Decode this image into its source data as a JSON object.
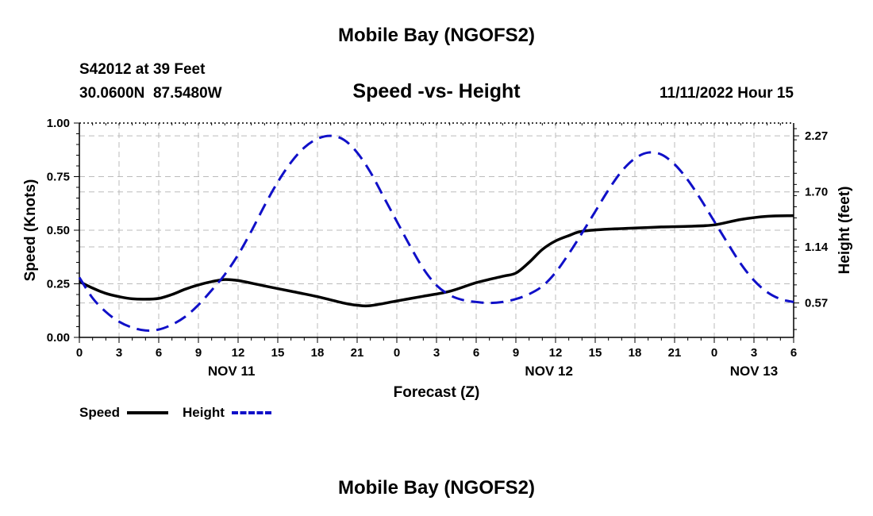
{
  "header": {
    "title_top": "Mobile Bay (NGOFS2)",
    "station": "S42012 at 39 Feet",
    "coords": "30.0600N  87.5480W",
    "subtitle": "Speed -vs- Height",
    "datetime": "11/11/2022 Hour 15",
    "title_bottom": "Mobile Bay (NGOFS2)"
  },
  "legend": {
    "speed_label": "Speed",
    "height_label": "Height"
  },
  "colors": {
    "speed": "#000000",
    "height": "#1010c8",
    "grid": "#bbbbbb"
  },
  "chart_data": {
    "type": "line",
    "title": "Speed -vs- Height",
    "xlabel": "Forecast (Z)",
    "ylabel": "Speed (Knots)",
    "y2label": "Height (feet)",
    "xlim": [
      0,
      54
    ],
    "ylim": [
      0,
      1.0
    ],
    "y2lim": [
      0.22,
      2.4
    ],
    "x_ticks": [
      0,
      3,
      6,
      9,
      12,
      15,
      18,
      21,
      24,
      27,
      30,
      33,
      36,
      39,
      42,
      45,
      48,
      51,
      54
    ],
    "x_tick_labels": [
      "0",
      "3",
      "6",
      "9",
      "12",
      "15",
      "18",
      "21",
      "0",
      "3",
      "6",
      "9",
      "12",
      "15",
      "18",
      "21",
      "0",
      "3",
      "6"
    ],
    "y_ticks": [
      0,
      0.25,
      0.5,
      0.75,
      1.0
    ],
    "y_tick_labels": [
      "0.00",
      "0.25",
      "0.50",
      "0.75",
      "1.00"
    ],
    "y2_ticks": [
      0.57,
      1.14,
      1.7,
      2.27
    ],
    "y2_tick_labels": [
      "0.57",
      "1.14",
      "1.70",
      "2.27"
    ],
    "date_labels": [
      {
        "x": 11.5,
        "label": "NOV 11"
      },
      {
        "x": 35.5,
        "label": "NOV 12"
      },
      {
        "x": 51,
        "label": "NOV 13"
      }
    ],
    "series": [
      {
        "name": "Speed",
        "axis": "left",
        "x": [
          0,
          1,
          2,
          3,
          4,
          5,
          6,
          7,
          8,
          9,
          10,
          11,
          12,
          14,
          16,
          18,
          20,
          21,
          22,
          24,
          26,
          28,
          30,
          32,
          33,
          34,
          35,
          36,
          37,
          38,
          40,
          42,
          44,
          46,
          48,
          50,
          52,
          54
        ],
        "values": [
          0.26,
          0.23,
          0.205,
          0.19,
          0.18,
          0.178,
          0.182,
          0.2,
          0.225,
          0.245,
          0.26,
          0.27,
          0.265,
          0.24,
          0.215,
          0.19,
          0.16,
          0.15,
          0.148,
          0.17,
          0.192,
          0.215,
          0.255,
          0.285,
          0.3,
          0.35,
          0.41,
          0.45,
          0.475,
          0.495,
          0.505,
          0.51,
          0.515,
          0.518,
          0.525,
          0.55,
          0.565,
          0.568
        ]
      },
      {
        "name": "Height",
        "axis": "right",
        "x": [
          0,
          1,
          2,
          3,
          4,
          5,
          6,
          7,
          8,
          9,
          10,
          11,
          12,
          13,
          14,
          15,
          16,
          17,
          18,
          19,
          20,
          21,
          22,
          23,
          24,
          25,
          26,
          27,
          28,
          29,
          30,
          31,
          32,
          33,
          34,
          35,
          36,
          37,
          38,
          39,
          40,
          41,
          42,
          43,
          44,
          45,
          46,
          47,
          48,
          49,
          50,
          51,
          52,
          53,
          54
        ],
        "values": [
          0.83,
          0.62,
          0.48,
          0.38,
          0.32,
          0.29,
          0.3,
          0.35,
          0.43,
          0.55,
          0.7,
          0.86,
          1.06,
          1.3,
          1.56,
          1.8,
          2.0,
          2.15,
          2.24,
          2.27,
          2.23,
          2.1,
          1.9,
          1.65,
          1.4,
          1.15,
          0.92,
          0.75,
          0.65,
          0.6,
          0.58,
          0.57,
          0.58,
          0.61,
          0.66,
          0.74,
          0.88,
          1.07,
          1.28,
          1.5,
          1.72,
          1.91,
          2.04,
          2.1,
          2.08,
          1.98,
          1.82,
          1.62,
          1.4,
          1.18,
          0.97,
          0.8,
          0.68,
          0.61,
          0.58
        ]
      }
    ]
  }
}
